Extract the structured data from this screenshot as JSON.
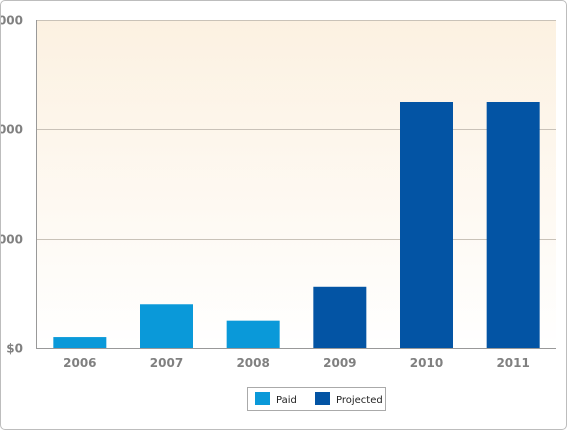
{
  "chart_data": {
    "type": "bar",
    "title": "",
    "xlabel": "",
    "ylabel": "",
    "categories": [
      "2006",
      "2007",
      "2008",
      "2009",
      "2010",
      "2011"
    ],
    "series": [
      {
        "name": "Paid",
        "color": "#0a99d9",
        "values": [
          2,
          8,
          5,
          0,
          0,
          0
        ]
      },
      {
        "name": "Projected",
        "color": "#0354a4",
        "values": [
          0,
          0,
          0,
          11.2,
          45,
          45
        ]
      }
    ],
    "y_ticks": [
      {
        "value": 0,
        "label": "$0"
      },
      {
        "value": 20,
        "label": "000"
      },
      {
        "value": 40,
        "label": "000"
      },
      {
        "value": 60,
        "label": "000"
      }
    ],
    "ylim": [
      0,
      60
    ],
    "grid": true,
    "legend_position": "bottom-center",
    "colors": {
      "plot_background_top": "#fcf1e1",
      "plot_background_bottom": "#ffffff",
      "gridline": "#c9c2b8",
      "axis": "#999999",
      "tick_text": "#808080"
    }
  }
}
